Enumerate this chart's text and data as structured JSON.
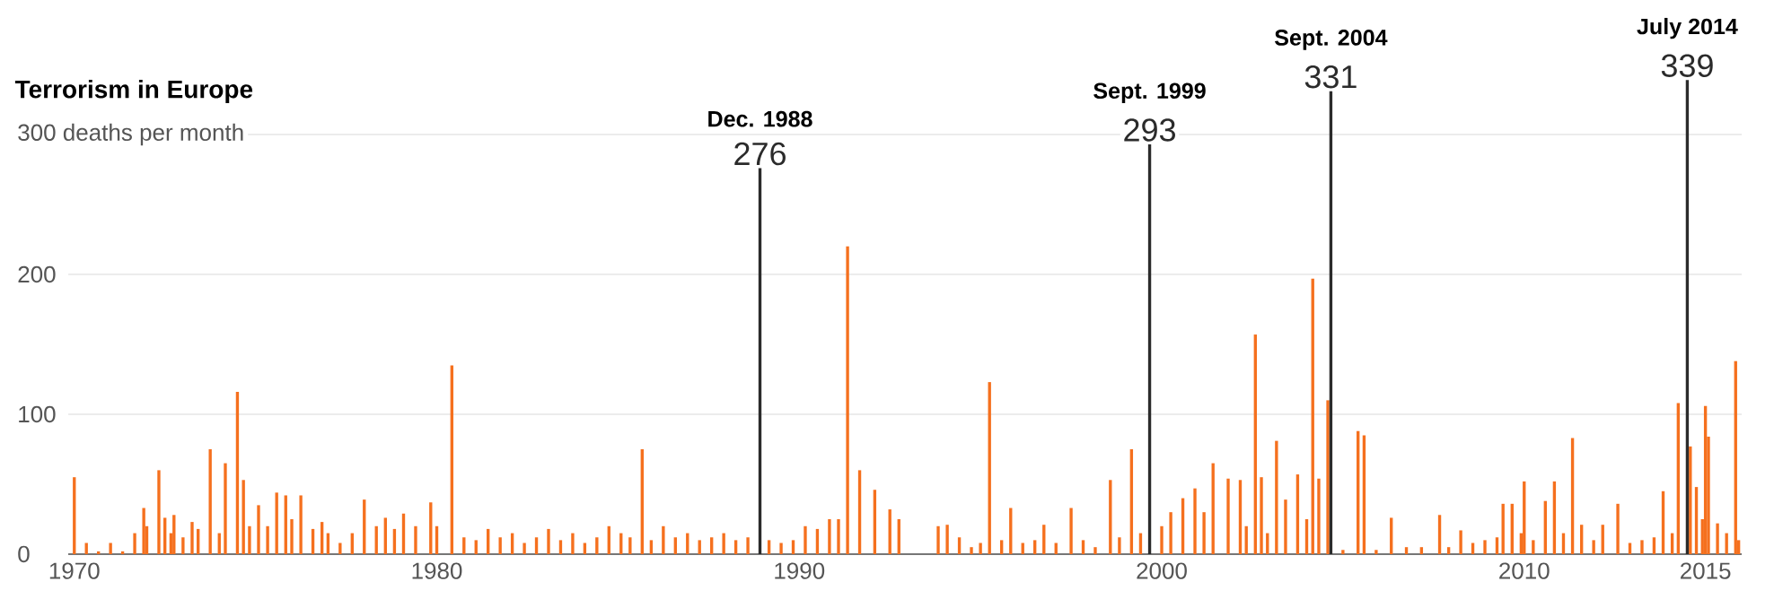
{
  "chart_data": {
    "type": "bar",
    "title": "Terrorism in Europe",
    "xlim": [
      "1969-11",
      "2016-01"
    ],
    "xticks": [
      "1970",
      "1980",
      "1990",
      "2000",
      "2010",
      "2015"
    ],
    "ylim": [
      0,
      339
    ],
    "yticks": [
      0,
      100,
      200,
      {
        "value": 300,
        "label": "300 deaths per month"
      }
    ],
    "grid": "y",
    "series": [
      {
        "color": "#f5701e",
        "x": [
          "1970-01",
          "1970-05",
          "1970-09",
          "1971-01",
          "1971-05",
          "1971-09",
          "1971-12",
          "1972-01",
          "1972-05",
          "1972-07",
          "1972-09",
          "1972-10",
          "1973-01",
          "1973-04",
          "1973-06",
          "1973-10",
          "1974-01",
          "1974-03",
          "1974-07",
          "1974-09",
          "1974-11",
          "1975-02",
          "1975-05",
          "1975-08",
          "1975-11",
          "1976-01",
          "1976-04",
          "1976-08",
          "1976-11",
          "1977-01",
          "1977-05",
          "1977-09",
          "1978-01",
          "1978-05",
          "1978-08",
          "1978-11",
          "1979-02",
          "1979-06",
          "1979-11",
          "1980-01",
          "1980-06",
          "1980-10",
          "1981-02",
          "1981-06",
          "1981-10",
          "1982-02",
          "1982-06",
          "1982-10",
          "1983-02",
          "1983-06",
          "1983-10",
          "1984-02",
          "1984-06",
          "1984-10",
          "1985-02",
          "1985-05",
          "1985-09",
          "1985-12",
          "1986-04",
          "1986-08",
          "1986-12",
          "1987-04",
          "1987-08",
          "1987-12",
          "1988-04",
          "1988-08",
          "1989-03",
          "1989-07",
          "1989-11",
          "1990-03",
          "1990-07",
          "1990-11",
          "1991-02",
          "1991-05",
          "1991-09",
          "1992-02",
          "1992-07",
          "1992-10",
          "1993-11",
          "1994-02",
          "1994-06",
          "1994-10",
          "1995-01",
          "1995-04",
          "1995-08",
          "1995-11",
          "1996-03",
          "1996-07",
          "1996-10",
          "1997-02",
          "1997-07",
          "1997-11",
          "1998-03",
          "1998-08",
          "1998-11",
          "1999-03",
          "1999-06",
          "2000-01",
          "2000-04",
          "2000-08",
          "2000-12",
          "2001-03",
          "2001-06",
          "2001-11",
          "2002-03",
          "2002-05",
          "2002-08",
          "2002-10",
          "2002-12",
          "2003-03",
          "2003-06",
          "2003-10",
          "2004-01",
          "2004-03",
          "2004-05",
          "2004-08",
          "2005-01",
          "2005-06",
          "2005-08",
          "2005-12",
          "2006-05",
          "2006-10",
          "2007-03",
          "2007-09",
          "2007-12",
          "2008-04",
          "2008-08",
          "2008-12",
          "2009-04",
          "2009-06",
          "2009-09",
          "2009-12",
          "2010-01",
          "2010-04",
          "2010-08",
          "2010-11",
          "2011-02",
          "2011-05",
          "2011-08",
          "2011-12",
          "2012-03",
          "2012-08",
          "2012-12",
          "2013-04",
          "2013-08",
          "2013-11",
          "2014-02",
          "2014-04",
          "2014-08",
          "2014-10",
          "2014-12",
          "2015-01",
          "2015-02",
          "2015-05",
          "2015-08",
          "2015-11",
          "2015-12"
        ],
        "values": [
          55,
          8,
          2,
          8,
          2,
          15,
          33,
          20,
          60,
          26,
          15,
          28,
          12,
          23,
          18,
          75,
          15,
          65,
          116,
          53,
          20,
          35,
          20,
          44,
          42,
          25,
          42,
          18,
          23,
          15,
          8,
          15,
          39,
          20,
          26,
          18,
          29,
          20,
          37,
          20,
          135,
          12,
          10,
          18,
          12,
          15,
          8,
          12,
          18,
          10,
          15,
          8,
          12,
          20,
          15,
          12,
          75,
          10,
          20,
          12,
          15,
          10,
          12,
          15,
          10,
          12,
          10,
          8,
          10,
          20,
          18,
          25,
          25,
          220,
          60,
          46,
          32,
          25,
          20,
          21,
          12,
          5,
          8,
          123,
          10,
          33,
          8,
          10,
          21,
          8,
          33,
          10,
          5,
          53,
          12,
          75,
          15,
          20,
          30,
          40,
          47,
          30,
          65,
          54,
          53,
          20,
          157,
          55,
          15,
          81,
          39,
          57,
          25,
          197,
          54,
          110,
          3,
          88,
          85,
          3,
          26,
          5,
          5,
          28,
          5,
          17,
          8,
          10,
          12,
          36,
          36,
          15,
          52,
          10,
          38,
          52,
          15,
          83,
          21,
          10,
          21,
          36,
          8,
          10,
          12,
          45,
          15,
          108,
          77,
          48,
          25,
          106,
          84,
          22,
          15,
          138,
          10
        ]
      },
      {
        "color": "#2b2b2b",
        "x": [
          "1988-12",
          "1999-09",
          "2004-09",
          "2014-07"
        ],
        "values": [
          276,
          293,
          331,
          339
        ],
        "value_labels": [
          "276",
          "293",
          "331",
          "339"
        ]
      }
    ],
    "annotations": [
      {
        "text": "Dec. 1988",
        "x": "1988-12",
        "y": 276
      },
      {
        "text": "Sept. 1999",
        "x": "1999-09",
        "y": 293
      },
      {
        "text": "Sept. 2004",
        "x": "2004-09",
        "y": 331
      },
      {
        "text": "July 2014",
        "x": "2014-07",
        "y": 339
      }
    ]
  }
}
